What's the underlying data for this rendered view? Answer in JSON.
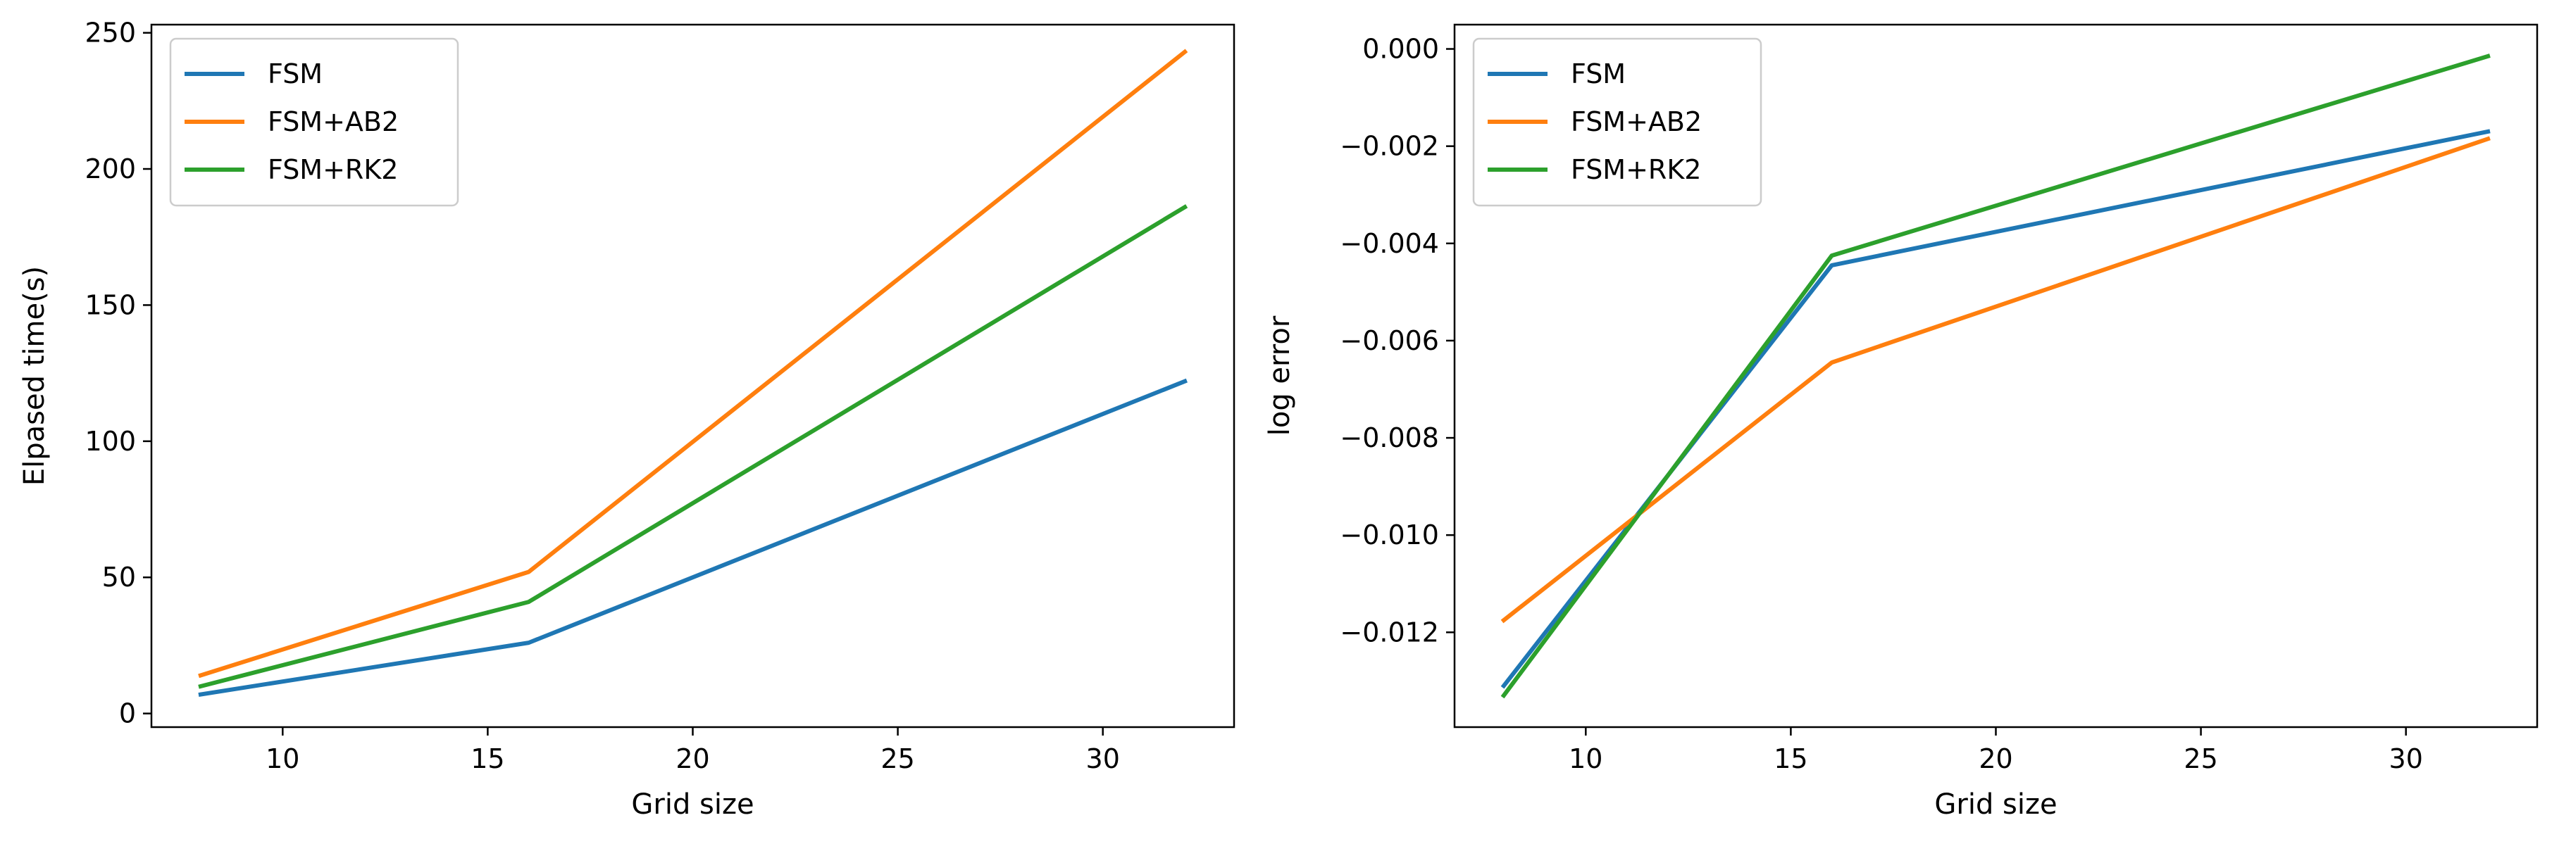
{
  "chart_data": [
    {
      "type": "line",
      "title": "",
      "xlabel": "Grid size",
      "ylabel": "Elpased time(s)",
      "xlim": [
        6.8,
        33.2
      ],
      "ylim": [
        -5,
        253
      ],
      "xticks": [
        10,
        15,
        20,
        25,
        30
      ],
      "yticks": [
        0,
        50,
        100,
        150,
        200,
        250
      ],
      "xtick_labels": [
        "10",
        "15",
        "20",
        "25",
        "30"
      ],
      "ytick_labels": [
        "0",
        "50",
        "100",
        "150",
        "200",
        "250"
      ],
      "grid": false,
      "legend_position": "upper left",
      "x": [
        8,
        16,
        32
      ],
      "series": [
        {
          "name": "FSM",
          "color": "#1f77b4",
          "values": [
            7,
            26,
            122
          ]
        },
        {
          "name": "FSM+AB2",
          "color": "#ff7f0e",
          "values": [
            14,
            52,
            243
          ]
        },
        {
          "name": "FSM+RK2",
          "color": "#2ca02c",
          "values": [
            10,
            41,
            186
          ]
        }
      ]
    },
    {
      "type": "line",
      "title": "",
      "xlabel": "Grid size",
      "ylabel": "log error",
      "xlim": [
        6.8,
        33.2
      ],
      "ylim": [
        -0.01395,
        0.0005
      ],
      "xticks": [
        10,
        15,
        20,
        25,
        30
      ],
      "yticks": [
        0.0,
        -0.002,
        -0.004,
        -0.006,
        -0.008,
        -0.01,
        -0.012
      ],
      "xtick_labels": [
        "10",
        "15",
        "20",
        "25",
        "30"
      ],
      "ytick_labels": [
        "0.000",
        "−0.002",
        "−0.004",
        "−0.006",
        "−0.008",
        "−0.010",
        "−0.012"
      ],
      "grid": false,
      "legend_position": "upper left",
      "x": [
        8,
        16,
        32
      ],
      "series": [
        {
          "name": "FSM",
          "color": "#1f77b4",
          "values": [
            -0.0131,
            -0.00445,
            -0.0017
          ]
        },
        {
          "name": "FSM+AB2",
          "color": "#ff7f0e",
          "values": [
            -0.01175,
            -0.00645,
            -0.00185
          ]
        },
        {
          "name": "FSM+RK2",
          "color": "#2ca02c",
          "values": [
            -0.0133,
            -0.00425,
            -0.00015
          ]
        }
      ]
    }
  ]
}
